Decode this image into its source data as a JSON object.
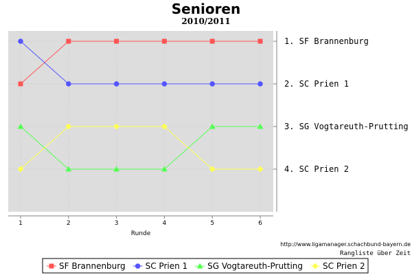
{
  "chart_data": {
    "type": "line",
    "title": "Senioren",
    "subtitle": "2010/2011",
    "xlabel": "Runde",
    "x": [
      1,
      2,
      3,
      4,
      5,
      6
    ],
    "ylim": [
      1,
      5
    ],
    "y_inverted": true,
    "grid": true,
    "legend_position": "bottom",
    "series": [
      {
        "name": "SF Brannenburg",
        "color": "#ff5555",
        "marker": "square",
        "values": [
          2,
          1,
          1,
          1,
          1,
          1
        ]
      },
      {
        "name": "SC Prien 1",
        "color": "#5555ff",
        "marker": "circle",
        "values": [
          1,
          2,
          2,
          2,
          2,
          2
        ]
      },
      {
        "name": "SG Vogtareuth-Prutting",
        "color": "#55ff55",
        "marker": "triangle",
        "values": [
          3,
          4,
          4,
          4,
          3,
          3
        ]
      },
      {
        "name": "SC Prien 2",
        "color": "#ffff55",
        "marker": "diamond",
        "values": [
          4,
          3,
          3,
          3,
          4,
          4
        ]
      }
    ],
    "rank_labels": [
      "1. SF Brannenburg",
      "2. SC Prien 1",
      "3. SG Vogtareuth-Prutting",
      "4. SC Prien 2"
    ]
  },
  "footer": {
    "url": "http://www.ligamanager.schachbund-bayern.de",
    "caption": "Rangliste über Zeit"
  }
}
